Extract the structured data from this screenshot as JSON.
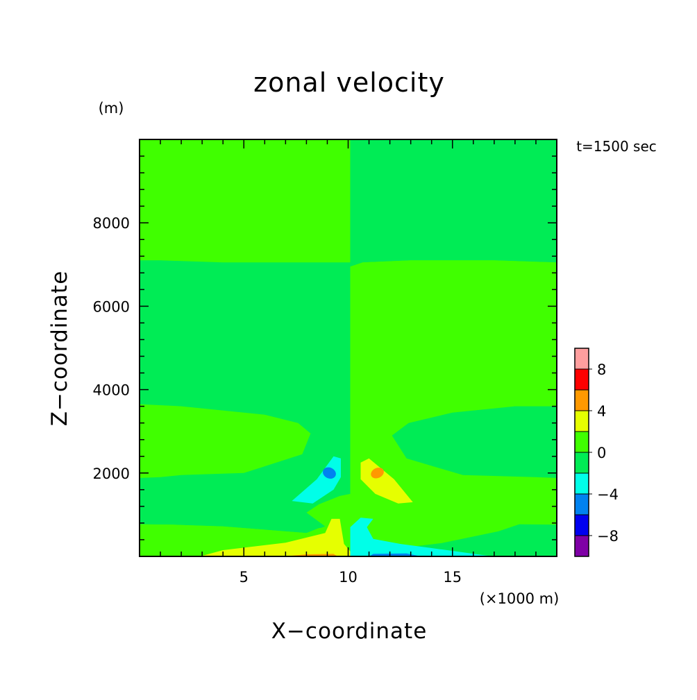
{
  "chart_data": {
    "type": "contour",
    "title": "zonal velocity",
    "xlabel": "X−coordinate",
    "ylabel": "Z−coordinate",
    "x_unit": "(×1000 m)",
    "y_unit": "(m)",
    "time_label": "t=1500 sec",
    "xlim": [
      0,
      20
    ],
    "ylim": [
      0,
      10000
    ],
    "x_ticks": [
      {
        "v": 5,
        "label": "5"
      },
      {
        "v": 10,
        "label": "10"
      },
      {
        "v": 15,
        "label": "15"
      }
    ],
    "y_ticks": [
      {
        "v": 2000,
        "label": "2000"
      },
      {
        "v": 4000,
        "label": "4000"
      },
      {
        "v": 6000,
        "label": "6000"
      },
      {
        "v": 8000,
        "label": "8000"
      }
    ],
    "colorbar": {
      "levels": [
        -10,
        -8,
        -6,
        -4,
        -2,
        0,
        2,
        4,
        6,
        8,
        10
      ],
      "colors": [
        "#7f00a6",
        "#0000f0",
        "#0082f0",
        "#00ffe8",
        "#00ec55",
        "#40ff00",
        "#e6ff00",
        "#ff9900",
        "#ff0000",
        "#ff9e9e"
      ],
      "tick_labels": [
        {
          "v": -8,
          "label": "−8"
        },
        {
          "v": -4,
          "label": "−4"
        },
        {
          "v": 0,
          "label": "0"
        },
        {
          "v": 4,
          "label": "4"
        },
        {
          "v": 8,
          "label": "8"
        }
      ]
    },
    "regions": [
      {
        "value_range": [
          0,
          2
        ],
        "color": "#40ff00",
        "desc": "upper layer above z~7000 m, x<10",
        "pts": [
          [
            0,
            10000
          ],
          [
            10.1,
            10000
          ],
          [
            10.1,
            7050
          ],
          [
            9,
            7050
          ],
          [
            4,
            7050
          ],
          [
            1,
            7100
          ],
          [
            0,
            7100
          ]
        ]
      },
      {
        "value_range": [
          -2,
          0
        ],
        "color": "#00ec55",
        "desc": "upper layer above z~7000 m, x>10",
        "pts": [
          [
            10.1,
            10000
          ],
          [
            20,
            10000
          ],
          [
            20,
            7050
          ],
          [
            17,
            7100
          ],
          [
            13,
            7100
          ],
          [
            10.7,
            7050
          ],
          [
            10.1,
            6950
          ]
        ]
      },
      {
        "value_range": [
          -2,
          0
        ],
        "color": "#00ec55",
        "desc": "middle layer x<10",
        "pts": [
          [
            0,
            7100
          ],
          [
            1,
            7100
          ],
          [
            4,
            7050
          ],
          [
            9,
            7050
          ],
          [
            10.1,
            7050
          ],
          [
            10.1,
            1500
          ],
          [
            9.6,
            1450
          ],
          [
            8.6,
            1250
          ],
          [
            8,
            1050
          ],
          [
            8.9,
            720
          ],
          [
            8,
            560
          ],
          [
            4,
            720
          ],
          [
            1.6,
            760
          ],
          [
            0,
            770
          ]
        ]
      },
      {
        "value_range": [
          0,
          2
        ],
        "color": "#40ff00",
        "desc": "middle layer x>10",
        "pts": [
          [
            10.1,
            6950
          ],
          [
            10.7,
            7050
          ],
          [
            13,
            7100
          ],
          [
            17,
            7100
          ],
          [
            20,
            7050
          ],
          [
            20,
            760
          ],
          [
            18.2,
            770
          ],
          [
            17.2,
            600
          ],
          [
            14.5,
            700
          ],
          [
            12.4,
            800
          ],
          [
            11.3,
            950
          ],
          [
            10.9,
            1350
          ],
          [
            10.6,
            1490
          ],
          [
            10.1,
            1500
          ]
        ]
      },
      {
        "value_range": [
          0,
          2
        ],
        "color": "#40ff00",
        "desc": "lower positive lobe x<10",
        "pts": [
          [
            0,
            3650
          ],
          [
            2,
            3600
          ],
          [
            6,
            3400
          ],
          [
            7.6,
            3200
          ],
          [
            8.2,
            2950
          ],
          [
            7.8,
            2450
          ],
          [
            5,
            2000
          ],
          [
            2,
            1950
          ],
          [
            1,
            1900
          ],
          [
            0,
            1880
          ]
        ]
      },
      {
        "value_range": [
          -2,
          0
        ],
        "color": "#00ec55",
        "desc": "lower negative lobe x>10",
        "pts": [
          [
            20,
            3600
          ],
          [
            18,
            3600
          ],
          [
            15,
            3450
          ],
          [
            12.9,
            3200
          ],
          [
            12.1,
            2900
          ],
          [
            12.8,
            2350
          ],
          [
            15.5,
            1950
          ],
          [
            19,
            1900
          ],
          [
            20,
            1880
          ]
        ]
      },
      {
        "value_range": [
          0,
          2
        ],
        "color": "#40ff00",
        "desc": "near-surface band x<10",
        "pts": [
          [
            0,
            770
          ],
          [
            1.6,
            760
          ],
          [
            4,
            720
          ],
          [
            8,
            560
          ],
          [
            8.6,
            680
          ],
          [
            9.2,
            700
          ],
          [
            9.1,
            330
          ],
          [
            9.6,
            80
          ],
          [
            9.6,
            0
          ],
          [
            0,
            0
          ]
        ]
      },
      {
        "value_range": [
          2,
          4
        ],
        "color": "#e6ff00",
        "desc": "near-surface yellow x<10",
        "pts": [
          [
            2.9,
            0
          ],
          [
            4,
            150
          ],
          [
            7,
            330
          ],
          [
            8.9,
            560
          ],
          [
            9.2,
            900
          ],
          [
            9.6,
            900
          ],
          [
            9.8,
            300
          ],
          [
            10.1,
            120
          ],
          [
            10.1,
            0
          ]
        ]
      },
      {
        "value_range": [
          4,
          6
        ],
        "color": "#ff9900",
        "desc": "surface orange x<10",
        "pts": [
          [
            6.9,
            0
          ],
          [
            8,
            50
          ],
          [
            9.3,
            60
          ],
          [
            9.5,
            0
          ]
        ]
      },
      {
        "value_range": [
          -2,
          0
        ],
        "color": "#00ec55",
        "desc": "near-surface band x>10",
        "pts": [
          [
            20,
            760
          ],
          [
            18.2,
            770
          ],
          [
            17.2,
            600
          ],
          [
            14.5,
            320
          ],
          [
            13,
            230
          ],
          [
            10.8,
            180
          ],
          [
            10.4,
            0
          ],
          [
            20,
            0
          ]
        ]
      },
      {
        "value_range": [
          -4,
          -2
        ],
        "color": "#00ffe8",
        "desc": "near-surface cyan x>10",
        "pts": [
          [
            10.1,
            0
          ],
          [
            10.1,
            700
          ],
          [
            10.6,
            930
          ],
          [
            11.2,
            900
          ],
          [
            10.9,
            700
          ],
          [
            11.2,
            420
          ],
          [
            12.5,
            300
          ],
          [
            14,
            200
          ],
          [
            16.5,
            30
          ],
          [
            17,
            0
          ]
        ]
      },
      {
        "value_range": [
          -6,
          -4
        ],
        "color": "#0082f0",
        "desc": "surface blue x>10",
        "pts": [
          [
            11,
            0
          ],
          [
            11.2,
            60
          ],
          [
            12.8,
            70
          ],
          [
            13.5,
            0
          ]
        ]
      },
      {
        "value_range": [
          -4,
          -2
        ],
        "color": "#00ffe8",
        "desc": "upper cyan lobe x<10",
        "pts": [
          [
            7.3,
            1330
          ],
          [
            8.5,
            1850
          ],
          [
            9.3,
            2400
          ],
          [
            9.65,
            2350
          ],
          [
            9.65,
            1900
          ],
          [
            9.3,
            1600
          ],
          [
            8.3,
            1270
          ]
        ]
      },
      {
        "value_range": [
          -6,
          -4
        ],
        "color": "#0082f0",
        "desc": "blue core",
        "ellipse": {
          "cx": 9.1,
          "cy": 2000,
          "rx": 0.09,
          "ry": 130,
          "rot": 25
        }
      },
      {
        "value_range": [
          2,
          4
        ],
        "color": "#e6ff00",
        "desc": "upper yellow lobe x>10",
        "pts": [
          [
            10.6,
            2250
          ],
          [
            11,
            2350
          ],
          [
            12.2,
            1850
          ],
          [
            13.1,
            1300
          ],
          [
            12.4,
            1270
          ],
          [
            11.3,
            1500
          ],
          [
            10.6,
            1850
          ]
        ]
      },
      {
        "value_range": [
          4,
          6
        ],
        "color": "#ff9900",
        "desc": "orange core",
        "ellipse": {
          "cx": 11.4,
          "cy": 2000,
          "rx": 0.09,
          "ry": 120,
          "rot": -25
        }
      }
    ]
  }
}
